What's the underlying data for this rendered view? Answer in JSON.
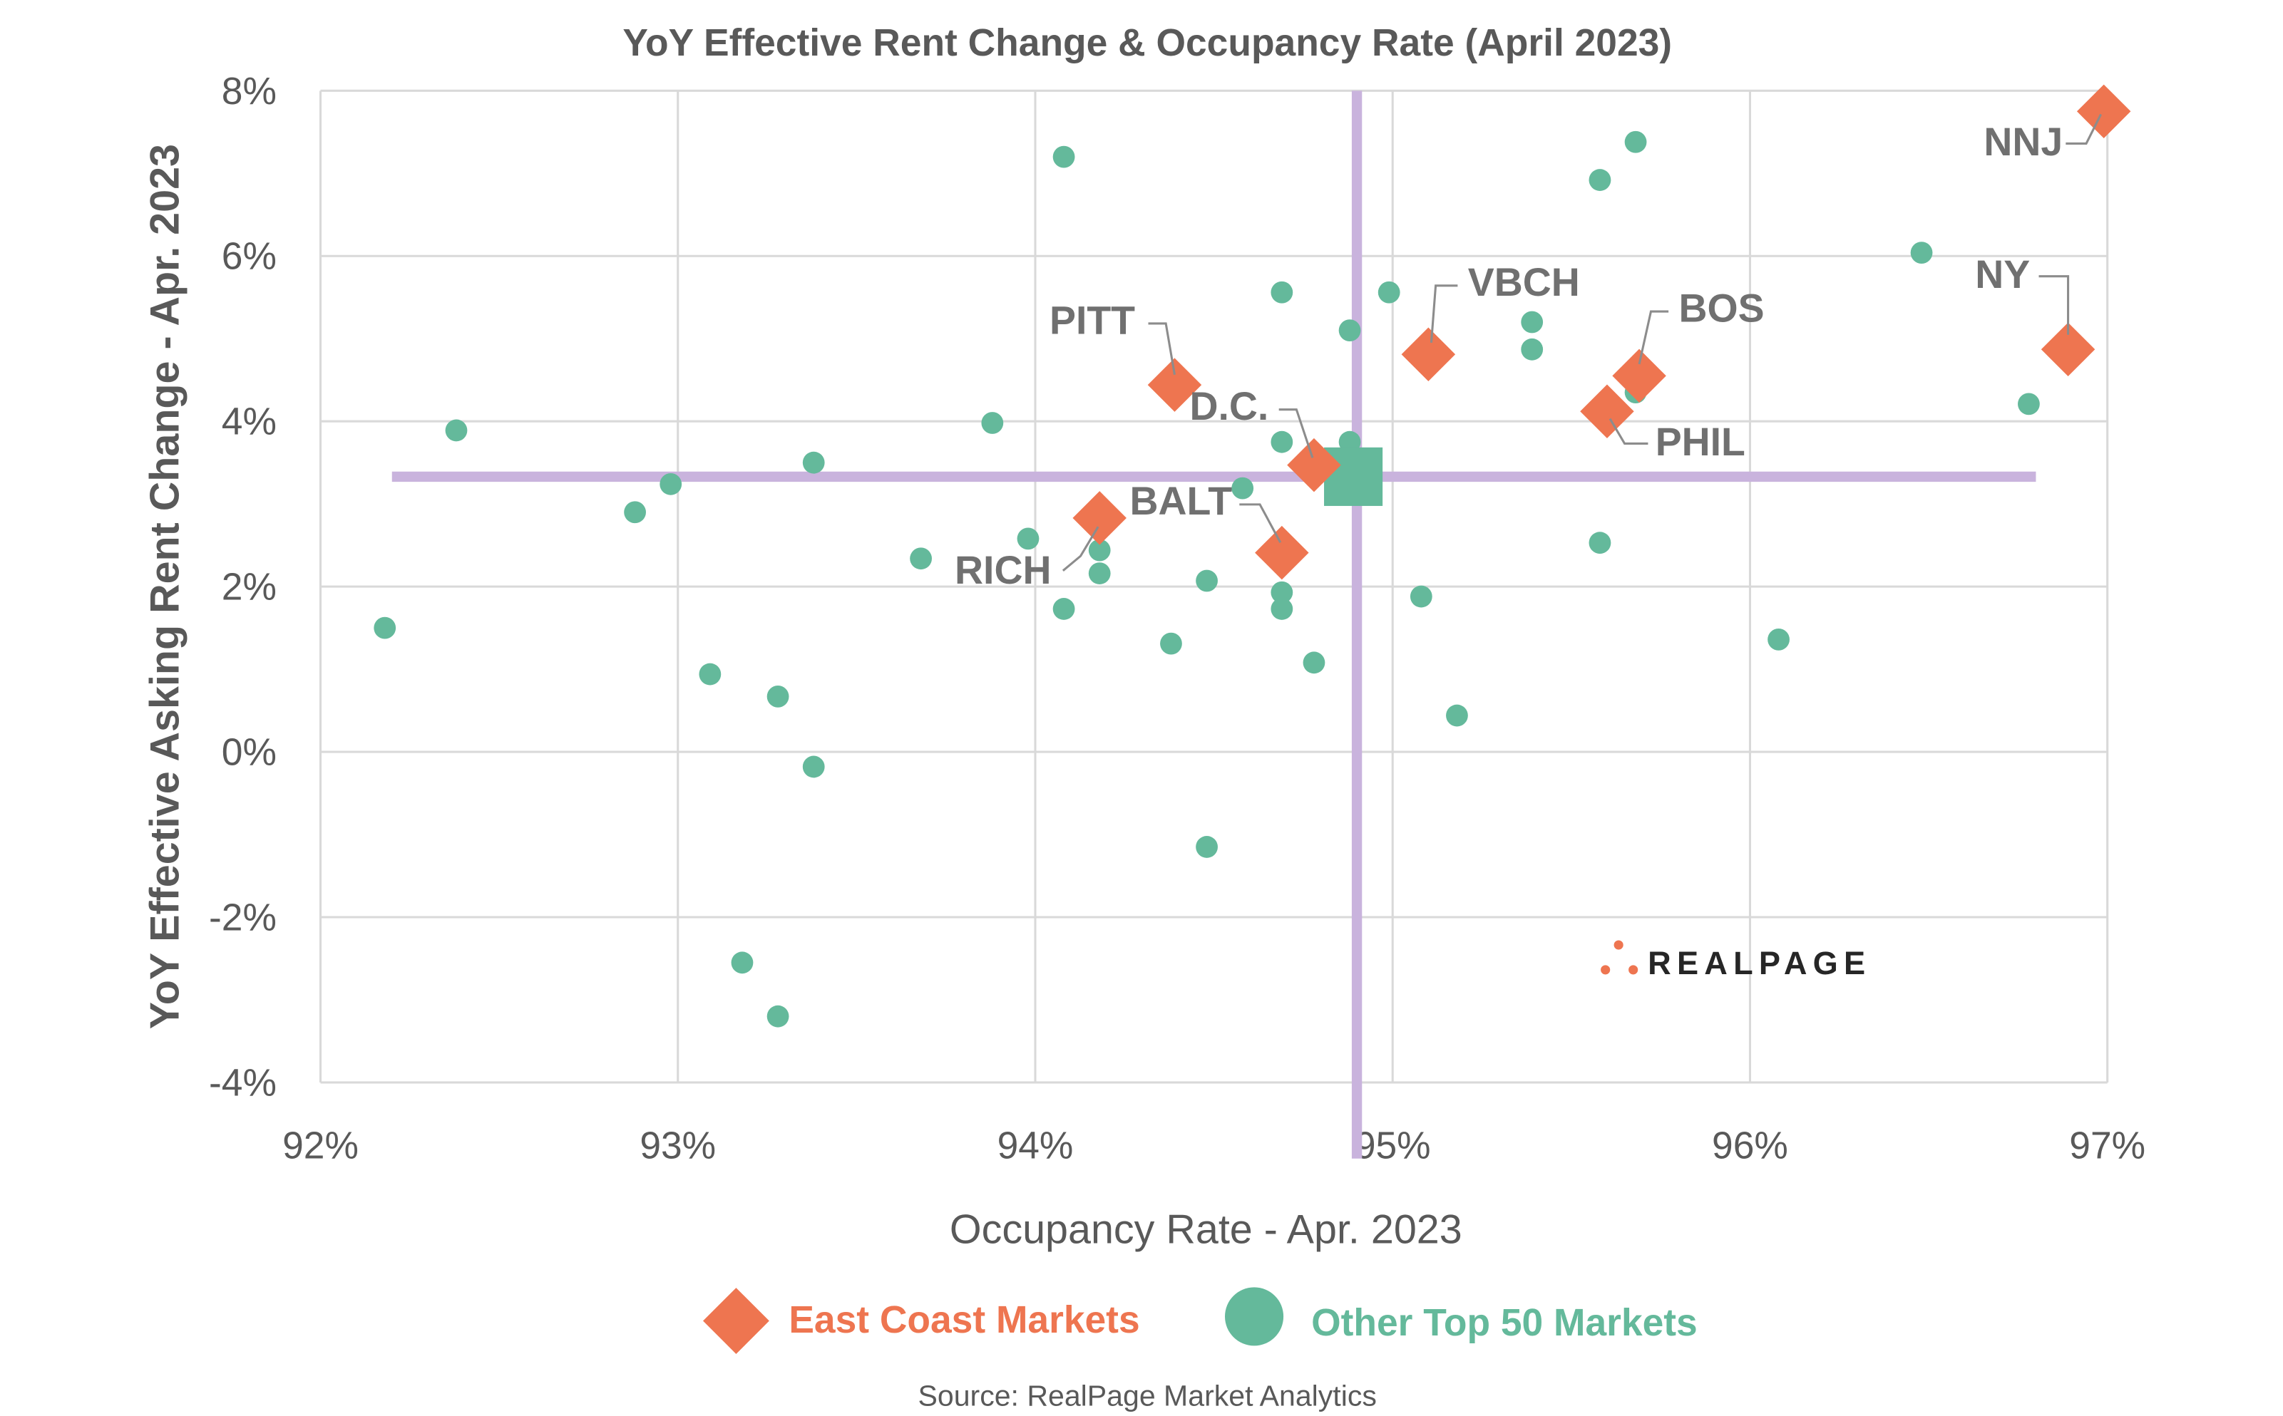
{
  "chart_data": {
    "type": "scatter",
    "title": "YoY Effective Rent Change & Occupancy Rate (April 2023)",
    "xlabel": "Occupancy Rate - Apr. 2023",
    "ylabel": "YoY Effective Asking Rent Change - Apr. 2023",
    "xlim": [
      92,
      97
    ],
    "ylim": [
      -4,
      8
    ],
    "x_ticks": [
      92,
      93,
      94,
      95,
      96,
      97
    ],
    "y_ticks": [
      -4,
      -2,
      0,
      2,
      4,
      6,
      8
    ],
    "x_tick_labels": [
      "92%",
      "93%",
      "94%",
      "95%",
      "96%",
      "97%"
    ],
    "y_tick_labels": [
      "-4%",
      "-2%",
      "0%",
      "2%",
      "4%",
      "6%",
      "8%"
    ],
    "grid": true,
    "legend_placement": "bottom",
    "averages": {
      "occupancy": 94.9,
      "rent_change": 3.33
    },
    "series": [
      {
        "name": "East Coast Markets",
        "color": "#ee7550",
        "marker": "diamond",
        "points": [
          {
            "label": "NNJ",
            "x": 96.99,
            "y": 7.75
          },
          {
            "label": "NY",
            "x": 96.89,
            "y": 4.87
          },
          {
            "label": "BOS",
            "x": 95.69,
            "y": 4.55
          },
          {
            "label": "PHIL",
            "x": 95.6,
            "y": 4.12
          },
          {
            "label": "VBCH",
            "x": 95.1,
            "y": 4.81
          },
          {
            "label": "PITT",
            "x": 94.39,
            "y": 4.44
          },
          {
            "label": "D.C.",
            "x": 94.78,
            "y": 3.47
          },
          {
            "label": "BALT",
            "x": 94.69,
            "y": 2.41
          },
          {
            "label": "RICH",
            "x": 94.18,
            "y": 2.83
          }
        ]
      },
      {
        "name": "Other Top 50 Markets",
        "color": "#64b99b",
        "marker": "circle",
        "points": [
          {
            "x": 92.18,
            "y": 1.5
          },
          {
            "x": 92.38,
            "y": 3.89
          },
          {
            "x": 92.88,
            "y": 2.9
          },
          {
            "x": 92.98,
            "y": 3.24
          },
          {
            "x": 93.09,
            "y": 0.94
          },
          {
            "x": 93.28,
            "y": 0.67
          },
          {
            "x": 93.38,
            "y": 3.5
          },
          {
            "x": 93.38,
            "y": -0.18
          },
          {
            "x": 93.18,
            "y": -2.55
          },
          {
            "x": 93.28,
            "y": -3.2
          },
          {
            "x": 93.68,
            "y": 2.34
          },
          {
            "x": 93.88,
            "y": 3.98
          },
          {
            "x": 93.98,
            "y": 2.58
          },
          {
            "x": 94.08,
            "y": 7.2
          },
          {
            "x": 94.08,
            "y": 1.73
          },
          {
            "x": 94.18,
            "y": 2.44
          },
          {
            "x": 94.18,
            "y": 2.16
          },
          {
            "x": 94.38,
            "y": 1.31
          },
          {
            "x": 94.48,
            "y": 2.07
          },
          {
            "x": 94.48,
            "y": -1.15
          },
          {
            "x": 94.58,
            "y": 3.19
          },
          {
            "x": 94.69,
            "y": 5.56
          },
          {
            "x": 94.69,
            "y": 3.75
          },
          {
            "x": 94.69,
            "y": 1.93
          },
          {
            "x": 94.69,
            "y": 1.73
          },
          {
            "x": 94.78,
            "y": 1.08
          },
          {
            "x": 94.88,
            "y": 5.1
          },
          {
            "x": 94.88,
            "y": 3.75
          },
          {
            "x": 94.99,
            "y": 5.56
          },
          {
            "x": 95.08,
            "y": 1.88
          },
          {
            "x": 95.18,
            "y": 0.44
          },
          {
            "x": 95.39,
            "y": 5.2
          },
          {
            "x": 95.39,
            "y": 4.87
          },
          {
            "x": 95.58,
            "y": 6.92
          },
          {
            "x": 95.68,
            "y": 7.38
          },
          {
            "x": 95.58,
            "y": 2.53
          },
          {
            "x": 95.68,
            "y": 4.35
          },
          {
            "x": 96.08,
            "y": 1.36
          },
          {
            "x": 96.48,
            "y": 6.04
          },
          {
            "x": 96.78,
            "y": 4.21
          }
        ]
      }
    ],
    "average_marker": {
      "x": 94.89,
      "y": 3.33,
      "color": "#64b99b",
      "marker": "square"
    },
    "average_line_color": "#c9b3dd"
  },
  "legend": {
    "east": "East Coast Markets",
    "other": "Other Top 50 Markets"
  },
  "source": "Source: RealPage Market Analytics",
  "logo": "REALPAGE"
}
